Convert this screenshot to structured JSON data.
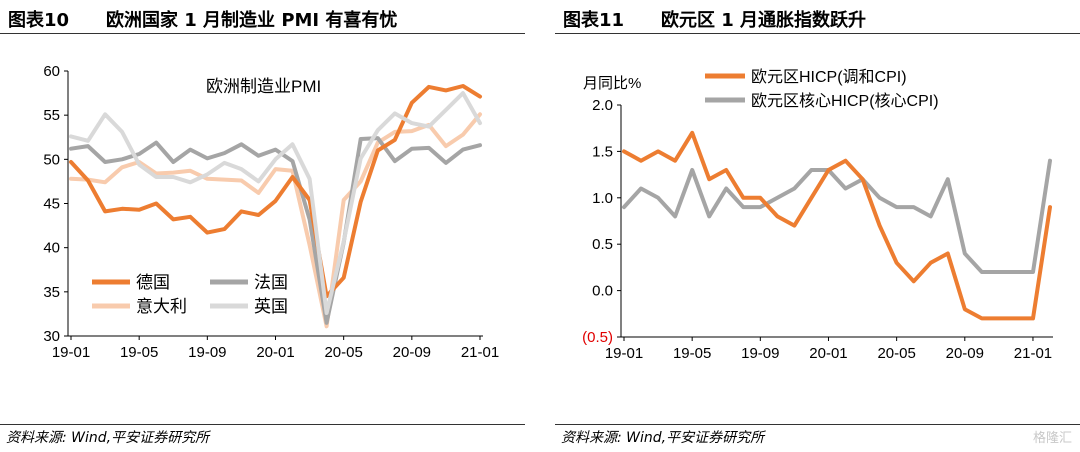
{
  "left": {
    "title_num": "图表10",
    "title_text": "欧洲国家 1 月制造业 PMI 有喜有忧",
    "source": "资料来源: Wind,平安证券研究所"
  },
  "right": {
    "title_num": "图表11",
    "title_text": "欧元区 1 月通胀指数跃升",
    "source": "资料来源: Wind,平安证券研究所"
  },
  "watermark": "格隆汇",
  "chart_data": [
    {
      "type": "line",
      "title": "欧洲制造业PMI",
      "xlabel": "",
      "ylabel": "",
      "ylim": [
        30,
        60
      ],
      "yticks": [
        30,
        35,
        40,
        45,
        50,
        55,
        60
      ],
      "xtick_labels": [
        "19-01",
        "19-05",
        "19-09",
        "20-01",
        "20-05",
        "20-09",
        "21-01"
      ],
      "legend_position": "bottom-left",
      "grid": false,
      "series": [
        {
          "name": "德国",
          "color": "#ED7D31",
          "values": [
            49.7,
            47.6,
            44.1,
            44.4,
            44.3,
            45.0,
            43.2,
            43.5,
            41.7,
            42.1,
            44.1,
            43.7,
            45.3,
            48.0,
            45.4,
            34.5,
            36.6,
            45.2,
            51.0,
            52.2,
            56.4,
            58.2,
            57.8,
            58.3,
            57.1
          ]
        },
        {
          "name": "法国",
          "color": "#A5A5A5",
          "values": [
            51.2,
            51.5,
            49.7,
            50.0,
            50.6,
            51.9,
            49.7,
            51.1,
            50.1,
            50.7,
            51.7,
            50.4,
            51.1,
            49.8,
            43.2,
            31.5,
            40.6,
            52.3,
            52.4,
            49.8,
            51.2,
            51.3,
            49.6,
            51.1,
            51.6
          ]
        },
        {
          "name": "意大利",
          "color": "#F8CBAD",
          "values": [
            47.8,
            47.7,
            47.4,
            49.1,
            49.7,
            48.4,
            48.5,
            48.7,
            47.8,
            47.7,
            47.6,
            46.2,
            48.9,
            48.7,
            40.3,
            31.1,
            45.4,
            47.5,
            51.9,
            53.1,
            53.2,
            53.9,
            51.5,
            52.8,
            55.1
          ]
        },
        {
          "name": "英国",
          "color": "#D9D9D9",
          "values": [
            52.6,
            52.1,
            55.1,
            53.1,
            49.4,
            48.0,
            48.0,
            47.4,
            48.3,
            49.6,
            48.9,
            47.5,
            50.0,
            51.7,
            47.8,
            32.6,
            40.7,
            50.1,
            53.3,
            55.2,
            54.1,
            53.7,
            55.6,
            57.5,
            54.1
          ]
        }
      ]
    },
    {
      "type": "line",
      "title": "",
      "xlabel": "",
      "ylabel": "月同比%",
      "ylim": [
        -0.5,
        2.0
      ],
      "yticks": [
        -0.5,
        0.0,
        0.5,
        1.0,
        1.5,
        2.0
      ],
      "ytick_labels": [
        "(0.5)",
        "0.0",
        "0.5",
        "1.0",
        "1.5",
        "2.0"
      ],
      "xtick_labels": [
        "19-01",
        "19-05",
        "19-09",
        "20-01",
        "20-05",
        "20-09",
        "21-01"
      ],
      "legend_position": "top",
      "grid": false,
      "series": [
        {
          "name": "欧元区HICP(调和CPI)",
          "color": "#ED7D31",
          "values": [
            1.5,
            1.4,
            1.5,
            1.4,
            1.7,
            1.2,
            1.3,
            1.0,
            1.0,
            0.8,
            0.7,
            1.0,
            1.3,
            1.4,
            1.2,
            0.7,
            0.3,
            0.1,
            0.3,
            0.4,
            -0.2,
            -0.3,
            -0.3,
            -0.3,
            -0.3,
            0.9
          ]
        },
        {
          "name": "欧元区核心HICP(核心CPI)",
          "color": "#A5A5A5",
          "values": [
            0.9,
            1.1,
            1.0,
            0.8,
            1.3,
            0.8,
            1.1,
            0.9,
            0.9,
            1.0,
            1.1,
            1.3,
            1.3,
            1.1,
            1.2,
            1.0,
            0.9,
            0.9,
            0.8,
            1.2,
            0.4,
            0.2,
            0.2,
            0.2,
            0.2,
            1.4
          ]
        }
      ]
    }
  ]
}
